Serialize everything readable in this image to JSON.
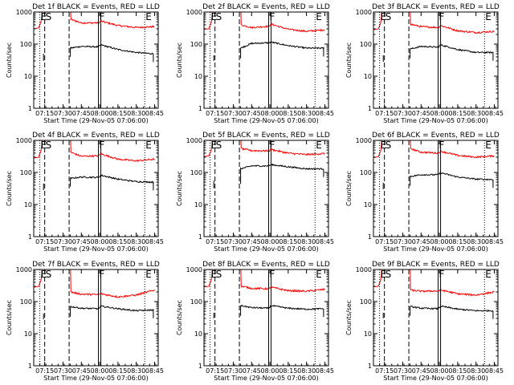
{
  "figure": {
    "x_tick_labels": [
      "07:15",
      "07:30",
      "07:45",
      "08:00",
      "08:15",
      "08:30",
      "08:45"
    ],
    "y_tick_labels": [
      "1",
      "10",
      "100",
      "1000"
    ],
    "ylabel": "Counts/sec",
    "xlabel": "Start Time (29-Nov-05 07:06:00)",
    "colors": {
      "events": "#000000",
      "lld": "#ff0000"
    }
  },
  "chart_data": [
    {
      "type": "line",
      "title": "Det 1f BLACK = Events, RED = LLD",
      "xlabel": "Start Time (29-Nov-05 07:06:00)",
      "ylabel": "Counts/sec",
      "xlim": [
        "07:06",
        "08:48"
      ],
      "ylim": [
        1,
        1000
      ],
      "yscale": "log",
      "markers": [
        {
          "label": "E",
          "time": "07:11",
          "style": "dotted"
        },
        {
          "label": "S",
          "time": "07:15",
          "style": "dashed"
        },
        {
          "label": "",
          "time": "07:35",
          "style": "dashed"
        },
        {
          "label": "F",
          "time": "07:59",
          "style": "solid"
        },
        {
          "label": "",
          "time": "08:01",
          "style": "solid"
        },
        {
          "label": "E",
          "time": "08:37",
          "style": "dotted"
        }
      ],
      "series": [
        {
          "name": "LLD",
          "color": "#ff0000",
          "time": [
            "07:06",
            "07:10",
            "07:12",
            "07:13",
            "07:36",
            "07:45",
            "07:59",
            "08:01",
            "08:15",
            "08:30",
            "08:45"
          ],
          "values": [
            300,
            320,
            500,
            950,
            600,
            460,
            460,
            520,
            380,
            330,
            350
          ]
        },
        {
          "name": "Events",
          "color": "#000000",
          "time": [
            "07:14",
            "07:16",
            "07:36",
            "07:45",
            "07:59",
            "08:01",
            "08:15",
            "08:30",
            "08:44"
          ],
          "values": [
            30,
            50,
            75,
            85,
            82,
            95,
            68,
            55,
            50
          ]
        }
      ]
    },
    {
      "type": "line",
      "title": "Det 2f BLACK = Events, RED = LLD",
      "xlabel": "Start Time (29-Nov-05 07:06:00)",
      "ylabel": "Counts/sec",
      "xlim": [
        "07:06",
        "08:48"
      ],
      "ylim": [
        1,
        1000
      ],
      "yscale": "log",
      "markers": [
        {
          "label": "E",
          "time": "07:11",
          "style": "dotted"
        },
        {
          "label": "S",
          "time": "07:15",
          "style": "dashed"
        },
        {
          "label": "",
          "time": "07:35",
          "style": "dashed"
        },
        {
          "label": "F",
          "time": "07:59",
          "style": "solid"
        },
        {
          "label": "",
          "time": "08:01",
          "style": "solid"
        },
        {
          "label": "E",
          "time": "08:37",
          "style": "dotted"
        }
      ],
      "series": [
        {
          "name": "LLD",
          "color": "#ff0000",
          "time": [
            "07:06",
            "07:10",
            "07:12",
            "07:13",
            "07:36",
            "07:45",
            "07:59",
            "08:01",
            "08:15",
            "08:30",
            "08:45"
          ],
          "values": [
            290,
            300,
            480,
            950,
            400,
            330,
            360,
            420,
            290,
            250,
            280
          ]
        },
        {
          "name": "Events",
          "color": "#000000",
          "time": [
            "07:14",
            "07:16",
            "07:36",
            "07:45",
            "07:59",
            "08:01",
            "08:15",
            "08:30",
            "08:44"
          ],
          "values": [
            30,
            45,
            75,
            105,
            110,
            115,
            90,
            75,
            75
          ]
        }
      ]
    },
    {
      "type": "line",
      "title": "Det 3f BLACK = Events, RED = LLD",
      "xlabel": "Start Time (29-Nov-05 07:06:00)",
      "ylabel": "Counts/sec",
      "xlim": [
        "07:06",
        "08:48"
      ],
      "ylim": [
        1,
        1000
      ],
      "yscale": "log",
      "markers": [
        {
          "label": "E",
          "time": "07:11",
          "style": "dotted"
        },
        {
          "label": "S",
          "time": "07:15",
          "style": "dashed"
        },
        {
          "label": "",
          "time": "07:35",
          "style": "dashed"
        },
        {
          "label": "F",
          "time": "07:59",
          "style": "solid"
        },
        {
          "label": "",
          "time": "08:01",
          "style": "solid"
        },
        {
          "label": "E",
          "time": "08:37",
          "style": "dotted"
        }
      ],
      "series": [
        {
          "name": "LLD",
          "color": "#ff0000",
          "time": [
            "07:06",
            "07:10",
            "07:12",
            "07:13",
            "07:36",
            "07:45",
            "07:59",
            "08:01",
            "08:15",
            "08:30",
            "08:45"
          ],
          "values": [
            280,
            300,
            470,
            950,
            420,
            350,
            330,
            380,
            260,
            230,
            250
          ]
        },
        {
          "name": "Events",
          "color": "#000000",
          "time": [
            "07:14",
            "07:16",
            "07:36",
            "07:45",
            "07:59",
            "08:01",
            "08:15",
            "08:30",
            "08:44"
          ],
          "values": [
            28,
            45,
            70,
            85,
            80,
            95,
            68,
            55,
            55
          ]
        }
      ]
    },
    {
      "type": "line",
      "title": "Det 4f BLACK = Events, RED = LLD",
      "xlabel": "Start Time (29-Nov-05 07:06:00)",
      "ylabel": "Counts/sec",
      "xlim": [
        "07:06",
        "08:48"
      ],
      "ylim": [
        1,
        1000
      ],
      "yscale": "log",
      "markers": [
        {
          "label": "E",
          "time": "07:11",
          "style": "dotted"
        },
        {
          "label": "S",
          "time": "07:15",
          "style": "dashed"
        },
        {
          "label": "",
          "time": "07:35",
          "style": "dashed"
        },
        {
          "label": "F",
          "time": "07:59",
          "style": "solid"
        },
        {
          "label": "",
          "time": "08:01",
          "style": "solid"
        },
        {
          "label": "E",
          "time": "08:37",
          "style": "dotted"
        }
      ],
      "series": [
        {
          "name": "LLD",
          "color": "#ff0000",
          "time": [
            "07:06",
            "07:10",
            "07:12",
            "07:13",
            "07:36",
            "07:45",
            "07:59",
            "08:01",
            "08:15",
            "08:30",
            "08:45"
          ],
          "values": [
            280,
            300,
            480,
            950,
            430,
            320,
            330,
            380,
            260,
            230,
            260
          ]
        },
        {
          "name": "Events",
          "color": "#000000",
          "time": [
            "07:14",
            "07:16",
            "07:36",
            "07:45",
            "07:59",
            "08:01",
            "08:15",
            "08:30",
            "08:44"
          ],
          "values": [
            28,
            45,
            65,
            72,
            70,
            82,
            62,
            52,
            50
          ]
        }
      ]
    },
    {
      "type": "line",
      "title": "Det 5f BLACK = Events, RED = LLD",
      "xlabel": "Start Time (29-Nov-05 07:06:00)",
      "ylabel": "Counts/sec",
      "xlim": [
        "07:06",
        "08:48"
      ],
      "ylim": [
        1,
        1000
      ],
      "yscale": "log",
      "markers": [
        {
          "label": "E",
          "time": "07:11",
          "style": "dotted"
        },
        {
          "label": "S",
          "time": "07:15",
          "style": "dashed"
        },
        {
          "label": "",
          "time": "07:35",
          "style": "dashed"
        },
        {
          "label": "F",
          "time": "07:59",
          "style": "solid"
        },
        {
          "label": "",
          "time": "08:01",
          "style": "solid"
        },
        {
          "label": "E",
          "time": "08:37",
          "style": "dotted"
        }
      ],
      "series": [
        {
          "name": "LLD",
          "color": "#ff0000",
          "time": [
            "07:06",
            "07:10",
            "07:12",
            "07:13",
            "07:36",
            "07:45",
            "07:59",
            "08:01",
            "08:15",
            "08:30",
            "08:45"
          ],
          "values": [
            310,
            330,
            500,
            950,
            560,
            480,
            470,
            520,
            400,
            360,
            390
          ]
        },
        {
          "name": "Events",
          "color": "#000000",
          "time": [
            "07:14",
            "07:16",
            "07:36",
            "07:45",
            "07:59",
            "08:01",
            "08:15",
            "08:30",
            "08:44"
          ],
          "values": [
            32,
            55,
            130,
            160,
            160,
            175,
            150,
            130,
            130
          ]
        }
      ]
    },
    {
      "type": "line",
      "title": "Det 6f BLACK = Events, RED = LLD",
      "xlabel": "Start Time (29-Nov-05 07:06:00)",
      "ylabel": "Counts/sec",
      "xlim": [
        "07:06",
        "08:48"
      ],
      "ylim": [
        1,
        1000
      ],
      "yscale": "log",
      "markers": [
        {
          "label": "E",
          "time": "07:11",
          "style": "dotted"
        },
        {
          "label": "S",
          "time": "07:15",
          "style": "dashed"
        },
        {
          "label": "",
          "time": "07:35",
          "style": "dashed"
        },
        {
          "label": "F",
          "time": "07:59",
          "style": "solid"
        },
        {
          "label": "",
          "time": "08:01",
          "style": "solid"
        },
        {
          "label": "E",
          "time": "08:37",
          "style": "dotted"
        }
      ],
      "series": [
        {
          "name": "LLD",
          "color": "#ff0000",
          "time": [
            "07:06",
            "07:10",
            "07:12",
            "07:13",
            "07:36",
            "07:45",
            "07:59",
            "08:01",
            "08:15",
            "08:30",
            "08:45"
          ],
          "values": [
            290,
            310,
            480,
            950,
            560,
            430,
            400,
            460,
            340,
            300,
            330
          ]
        },
        {
          "name": "Events",
          "color": "#000000",
          "time": [
            "07:14",
            "07:16",
            "07:36",
            "07:45",
            "07:59",
            "08:01",
            "08:15",
            "08:30",
            "08:44"
          ],
          "values": [
            30,
            48,
            75,
            85,
            85,
            98,
            72,
            62,
            60
          ]
        }
      ]
    },
    {
      "type": "line",
      "title": "Det 7f BLACK = Events, RED = LLD",
      "xlabel": "Start Time (29-Nov-05 07:06:00)",
      "ylabel": "Counts/sec",
      "xlim": [
        "07:06",
        "08:48"
      ],
      "ylim": [
        1,
        1000
      ],
      "yscale": "log",
      "markers": [
        {
          "label": "E",
          "time": "07:11",
          "style": "dotted"
        },
        {
          "label": "S",
          "time": "07:15",
          "style": "dashed"
        },
        {
          "label": "",
          "time": "07:35",
          "style": "dashed"
        },
        {
          "label": "F",
          "time": "07:59",
          "style": "solid"
        },
        {
          "label": "",
          "time": "08:01",
          "style": "solid"
        },
        {
          "label": "E",
          "time": "08:37",
          "style": "dotted"
        }
      ],
      "series": [
        {
          "name": "LLD",
          "color": "#ff0000",
          "time": [
            "07:06",
            "07:10",
            "07:12",
            "07:13",
            "07:36",
            "07:45",
            "07:59",
            "08:01",
            "08:15",
            "08:30",
            "08:45"
          ],
          "values": [
            280,
            300,
            470,
            950,
            200,
            170,
            165,
            175,
            140,
            160,
            230
          ]
        },
        {
          "name": "Events",
          "color": "#000000",
          "time": [
            "07:14",
            "07:16",
            "07:36",
            "07:45",
            "07:59",
            "08:01",
            "08:15",
            "08:30",
            "08:44"
          ],
          "values": [
            28,
            42,
            70,
            62,
            60,
            72,
            60,
            52,
            55
          ]
        }
      ]
    },
    {
      "type": "line",
      "title": "Det 8f BLACK = Events, RED = LLD",
      "xlabel": "Start Time (29-Nov-05 07:06:00)",
      "ylabel": "Counts/sec",
      "xlim": [
        "07:06",
        "08:48"
      ],
      "ylim": [
        1,
        1000
      ],
      "yscale": "log",
      "markers": [
        {
          "label": "E",
          "time": "07:11",
          "style": "dotted"
        },
        {
          "label": "S",
          "time": "07:15",
          "style": "dashed"
        },
        {
          "label": "",
          "time": "07:35",
          "style": "dashed"
        },
        {
          "label": "F",
          "time": "07:59",
          "style": "solid"
        },
        {
          "label": "",
          "time": "08:01",
          "style": "solid"
        },
        {
          "label": "E",
          "time": "08:37",
          "style": "dotted"
        }
      ],
      "series": [
        {
          "name": "LLD",
          "color": "#ff0000",
          "time": [
            "07:06",
            "07:10",
            "07:12",
            "07:13",
            "07:36",
            "07:45",
            "07:59",
            "08:01",
            "08:15",
            "08:30",
            "08:45"
          ],
          "values": [
            290,
            300,
            480,
            950,
            300,
            260,
            250,
            280,
            220,
            210,
            240
          ]
        },
        {
          "name": "Events",
          "color": "#000000",
          "time": [
            "07:14",
            "07:16",
            "07:36",
            "07:45",
            "07:59",
            "08:01",
            "08:15",
            "08:30",
            "08:44"
          ],
          "values": [
            30,
            45,
            75,
            65,
            62,
            75,
            62,
            58,
            60
          ]
        }
      ]
    },
    {
      "type": "line",
      "title": "Det 9f BLACK = Events, RED = LLD",
      "xlabel": "Start Time (29-Nov-05 07:06:00)",
      "ylabel": "Counts/sec",
      "xlim": [
        "07:06",
        "08:48"
      ],
      "ylim": [
        1,
        1000
      ],
      "yscale": "log",
      "markers": [
        {
          "label": "E",
          "time": "07:11",
          "style": "dotted"
        },
        {
          "label": "S",
          "time": "07:15",
          "style": "dashed"
        },
        {
          "label": "",
          "time": "07:35",
          "style": "dashed"
        },
        {
          "label": "F",
          "time": "07:59",
          "style": "solid"
        },
        {
          "label": "",
          "time": "08:01",
          "style": "solid"
        },
        {
          "label": "E",
          "time": "08:37",
          "style": "dotted"
        }
      ],
      "series": [
        {
          "name": "LLD",
          "color": "#ff0000",
          "time": [
            "07:06",
            "07:10",
            "07:12",
            "07:13",
            "07:36",
            "07:45",
            "07:59",
            "08:01",
            "08:15",
            "08:30",
            "08:45"
          ],
          "values": [
            290,
            300,
            480,
            950,
            230,
            210,
            215,
            230,
            175,
            160,
            200
          ]
        },
        {
          "name": "Events",
          "color": "#000000",
          "time": [
            "07:14",
            "07:16",
            "07:36",
            "07:45",
            "07:59",
            "08:01",
            "08:15",
            "08:30",
            "08:44"
          ],
          "values": [
            30,
            45,
            70,
            62,
            60,
            72,
            58,
            52,
            52
          ]
        }
      ]
    }
  ]
}
